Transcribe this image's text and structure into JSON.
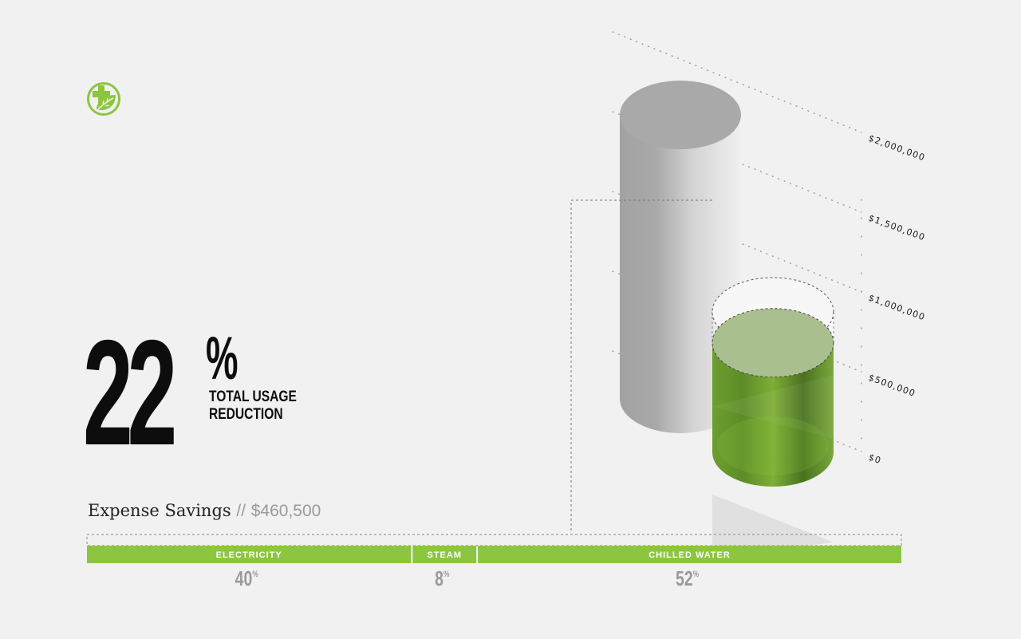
{
  "headline": {
    "number": "22",
    "unit": "%",
    "label": "TOTAL USAGE\nREDUCTION"
  },
  "expense": {
    "label": "Expense Savings",
    "separator": "//",
    "amount": "$460,500"
  },
  "breakdown": {
    "segments": [
      {
        "label": "ELECTRICITY",
        "percent": 40,
        "value": "40",
        "unit": "%"
      },
      {
        "label": "STEAM",
        "percent": 8,
        "value": "8",
        "unit": "%"
      },
      {
        "label": "CHILLED WATER",
        "percent": 52,
        "value": "52",
        "unit": "%"
      }
    ]
  },
  "colors": {
    "accent": "#8cc63f",
    "accent_dark": "#4f7a23",
    "gray_cylinder": "#b4b4b4",
    "text_dark": "#0d0d0d",
    "text_muted": "#9a9a9a",
    "background": "#f1f1f1"
  },
  "icons": {
    "logo": "leaf-plus-icon"
  },
  "chart_data": {
    "type": "bar",
    "style": "3d-cylinder",
    "series": [
      {
        "values": [
          2000000
        ]
      },
      {
        "values": [
          1560000
        ]
      }
    ],
    "y_ticks": [
      "$0",
      "$500,000",
      "$1,000,000",
      "$1,500,000",
      "$2,000,000"
    ],
    "y_tick_values": [
      0,
      500000,
      1000000,
      1500000,
      2000000
    ],
    "ylim": [
      0,
      2000000
    ],
    "grid": true,
    "grid_style": "dotted diagonal"
  }
}
